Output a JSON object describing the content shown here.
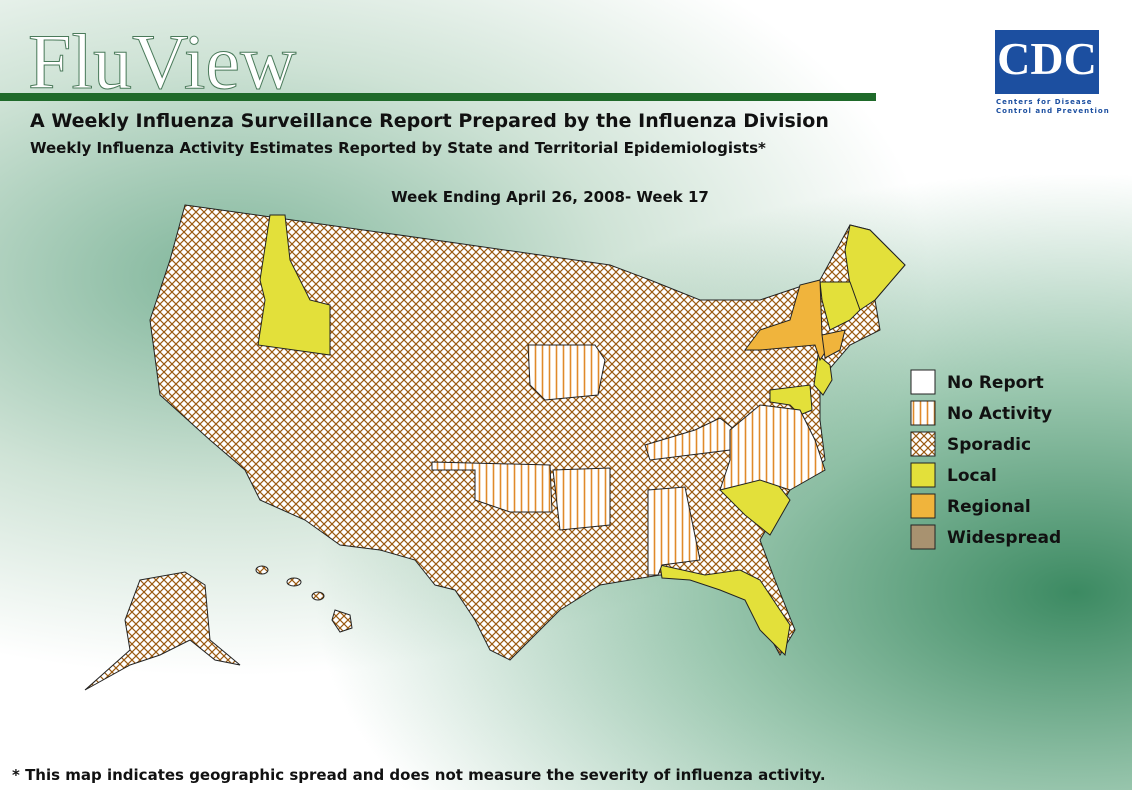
{
  "header": {
    "title": "FluView",
    "subtitle": "A Weekly Influenza Surveillance Report Prepared by the Influenza Division",
    "subtitle2": "Weekly Influenza Activity Estimates Reported by State and Territorial Epidemiologists*",
    "logo": "CDC",
    "logo_caption_1": "Centers for Disease",
    "logo_caption_2": "Control and Prevention"
  },
  "map": {
    "week": "Week Ending April 26, 2008- Week 17",
    "legend": [
      "No Report",
      "No Activity",
      "Sporadic",
      "Local",
      "Regional",
      "Widespread"
    ]
  },
  "footnote": "* This map indicates geographic spread and does not measure the severity of influenza activity."
}
